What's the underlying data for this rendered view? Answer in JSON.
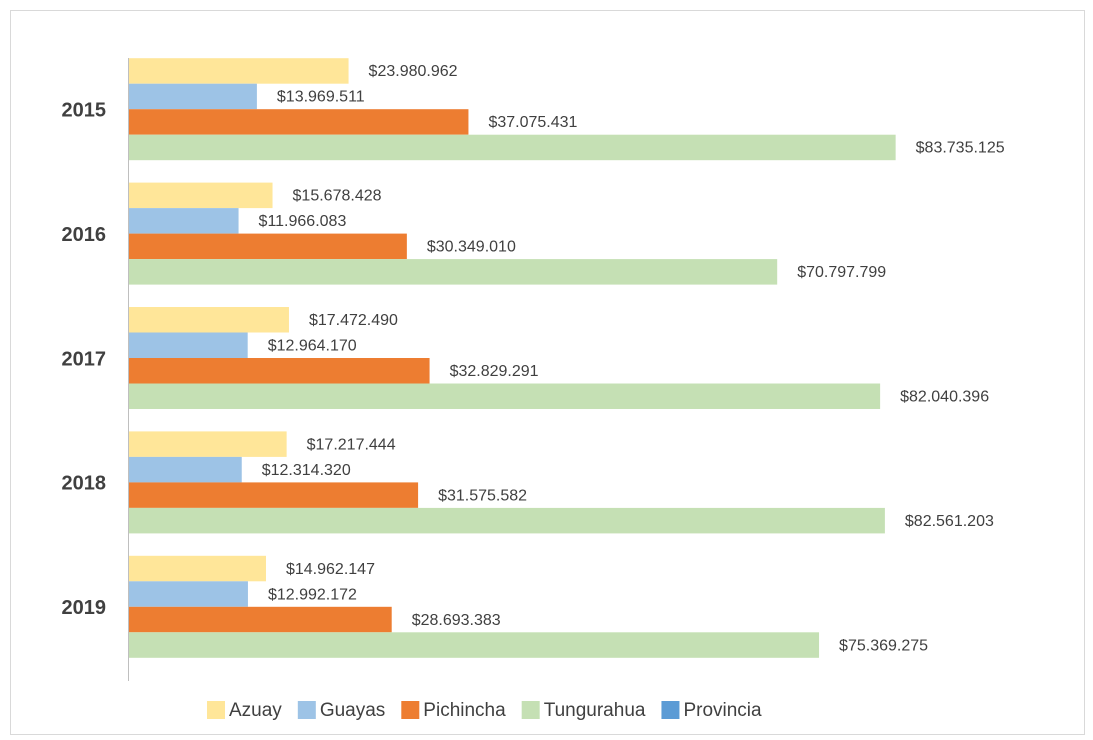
{
  "chart_data": {
    "type": "bar",
    "orientation": "horizontal",
    "categories": [
      "2015",
      "2016",
      "2017",
      "2018",
      "2019"
    ],
    "series": [
      {
        "name": "Azuay",
        "color": "#FFE699",
        "values": [
          23980962,
          15678428,
          17472490,
          17217444,
          14962147
        ],
        "value_labels": [
          "$23.980.962",
          "$15.678.428",
          "$17.472.490",
          "$17.217.444",
          "$14.962.147"
        ]
      },
      {
        "name": "Guayas",
        "color": "#9DC3E6",
        "values": [
          13969511,
          11966083,
          12964170,
          12314320,
          12992172
        ],
        "value_labels": [
          "$13.969.511",
          "$11.966.083",
          "$12.964.170",
          "$12.314.320",
          "$12.992.172"
        ]
      },
      {
        "name": "Pichincha",
        "color": "#ED7D31",
        "values": [
          37075431,
          30349010,
          32829291,
          31575582,
          28693383
        ],
        "value_labels": [
          "$37.075.431",
          "$30.349.010",
          "$32.829.291",
          "$31.575.582",
          "$28.693.383"
        ]
      },
      {
        "name": "Tungurahua",
        "color": "#C5E0B4",
        "values": [
          83735125,
          70797799,
          82040396,
          82561203,
          75369275
        ],
        "value_labels": [
          "$83.735.125",
          "$70.797.799",
          "$82.040.396",
          "$82.561.203",
          "$75.369.275"
        ]
      },
      {
        "name": "Provincia",
        "color": "#5B9BD5",
        "values": [
          null,
          null,
          null,
          null,
          null
        ]
      }
    ],
    "xlim": [
      0,
      90000000
    ],
    "legend": "bottom"
  }
}
